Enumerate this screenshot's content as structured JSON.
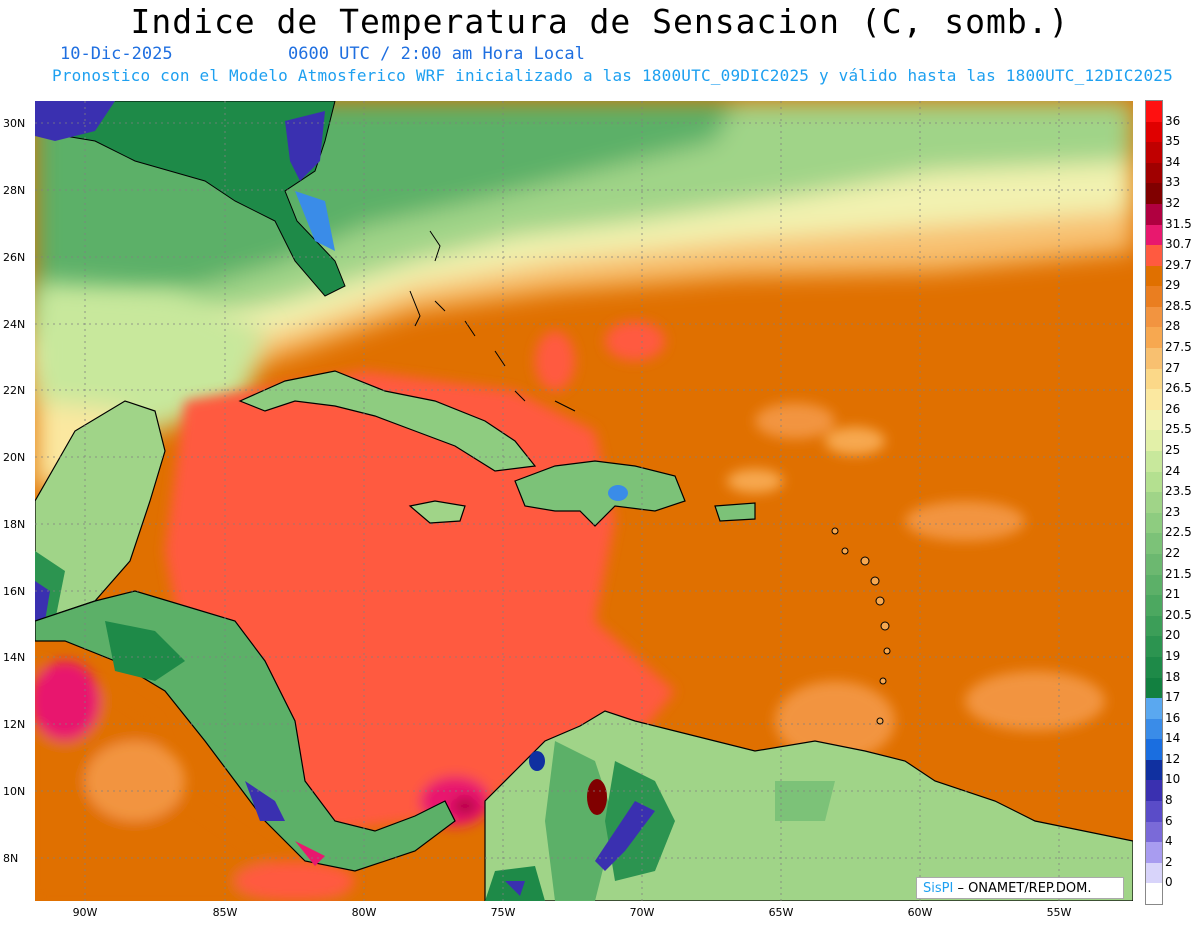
{
  "header": {
    "title": "Indice de Temperatura de Sensacion (C, somb.)",
    "date": "10-Dic-2025",
    "time": "0600 UTC / 2:00 am Hora Local",
    "model_line": "Pronostico con el Modelo Atmosferico WRF inicializado a las 1800UTC_09DIC2025 y válido hasta las  1800UTC_12DIC2025"
  },
  "map": {
    "lat_labels": [
      "30N",
      "28N",
      "26N",
      "24N",
      "22N",
      "20N",
      "18N",
      "16N",
      "14N",
      "12N",
      "10N",
      "8N"
    ],
    "lon_labels": [
      "90W",
      "85W",
      "80W",
      "75W",
      "70W",
      "65W",
      "60W",
      "55W"
    ]
  },
  "colorbar": {
    "levels": [
      {
        "label": "36",
        "color": "#ff1010"
      },
      {
        "label": "35",
        "color": "#e00000"
      },
      {
        "label": "34",
        "color": "#c00000"
      },
      {
        "label": "33",
        "color": "#a00000"
      },
      {
        "label": "32",
        "color": "#800000"
      },
      {
        "label": "31.5",
        "color": "#b00040"
      },
      {
        "label": "30.7",
        "color": "#e8186e"
      },
      {
        "label": "29.7",
        "color": "#ff5a40"
      },
      {
        "label": "29",
        "color": "#e07000"
      },
      {
        "label": "28.5",
        "color": "#ea7e20"
      },
      {
        "label": "28",
        "color": "#f29440"
      },
      {
        "label": "27.5",
        "color": "#f7a850"
      },
      {
        "label": "27",
        "color": "#f8c070"
      },
      {
        "label": "26.5",
        "color": "#fbd888"
      },
      {
        "label": "26",
        "color": "#fbe8a0"
      },
      {
        "label": "25.5",
        "color": "#f2f2b0"
      },
      {
        "label": "25",
        "color": "#e2f0a8"
      },
      {
        "label": "24",
        "color": "#c8e89c"
      },
      {
        "label": "23.5",
        "color": "#b4e090"
      },
      {
        "label": "23",
        "color": "#a0d488"
      },
      {
        "label": "22.5",
        "color": "#8ecc80"
      },
      {
        "label": "22",
        "color": "#7cc278"
      },
      {
        "label": "21.5",
        "color": "#6cb870"
      },
      {
        "label": "21",
        "color": "#5cb068"
      },
      {
        "label": "20.5",
        "color": "#4ca860"
      },
      {
        "label": "20",
        "color": "#3c9e58"
      },
      {
        "label": "19",
        "color": "#2c9450"
      },
      {
        "label": "18",
        "color": "#1e8a48"
      },
      {
        "label": "17",
        "color": "#128040"
      },
      {
        "label": "16",
        "color": "#5aa8f0"
      },
      {
        "label": "14",
        "color": "#3a8ce8"
      },
      {
        "label": "12",
        "color": "#1a6ee0"
      },
      {
        "label": "10",
        "color": "#1030a0"
      },
      {
        "label": "8",
        "color": "#3a30b0"
      },
      {
        "label": "6",
        "color": "#5a4cc8"
      },
      {
        "label": "4",
        "color": "#7a6ad8"
      },
      {
        "label": "2",
        "color": "#a89cf0"
      },
      {
        "label": "0",
        "color": "#d8d4fa"
      }
    ]
  },
  "credit": {
    "brand": "SisPI",
    "dash": " – ",
    "org": "ONAMET/REP.DOM."
  },
  "colors": {
    "sea_hot": "#ff5a40",
    "sea_warm": "#e07000",
    "north_green": "#5cb068",
    "text_blue": "#1f6fe0"
  }
}
